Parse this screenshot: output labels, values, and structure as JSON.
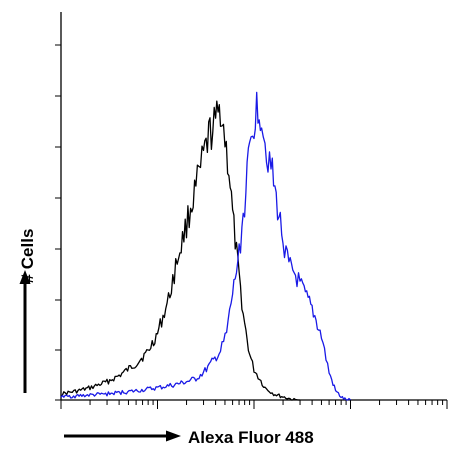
{
  "chart_data": {
    "type": "line",
    "title": "",
    "xlabel": "Alexa Fluor 488",
    "ylabel": "# Cells",
    "x_scale": "log",
    "xlim": [
      1,
      10000
    ],
    "ylim": [
      0,
      100
    ],
    "grid": false,
    "legend": "none",
    "series": [
      {
        "color": "#000000",
        "x": [
          1,
          1.5,
          2,
          3,
          4,
          6,
          8,
          10,
          13,
          16,
          20,
          25,
          30,
          35,
          40,
          45,
          50,
          55,
          60,
          70,
          80,
          90,
          100,
          130,
          160,
          200,
          260,
          300
        ],
        "y": [
          2,
          3,
          4,
          6,
          8,
          12,
          16,
          22,
          33,
          46,
          58,
          70,
          80,
          88,
          91,
          97,
          86,
          76,
          61,
          40,
          25,
          15,
          10,
          4,
          2,
          1,
          0,
          0
        ]
      },
      {
        "color": "#1a1ae6",
        "x": [
          1,
          3,
          6,
          10,
          15,
          20,
          25,
          30,
          38,
          45,
          52,
          60,
          70,
          80,
          90,
          100,
          110,
          120,
          130,
          150,
          170,
          200,
          230,
          260,
          300,
          400,
          500,
          600,
          700,
          800,
          900,
          1000
        ],
        "y": [
          1,
          2,
          3,
          4,
          5,
          6,
          7,
          9,
          13,
          16,
          22,
          35,
          48,
          65,
          82,
          92,
          98,
          94,
          85,
          77,
          66,
          53,
          44,
          42,
          38,
          30,
          21,
          9,
          3,
          1,
          0,
          0
        ]
      }
    ]
  }
}
